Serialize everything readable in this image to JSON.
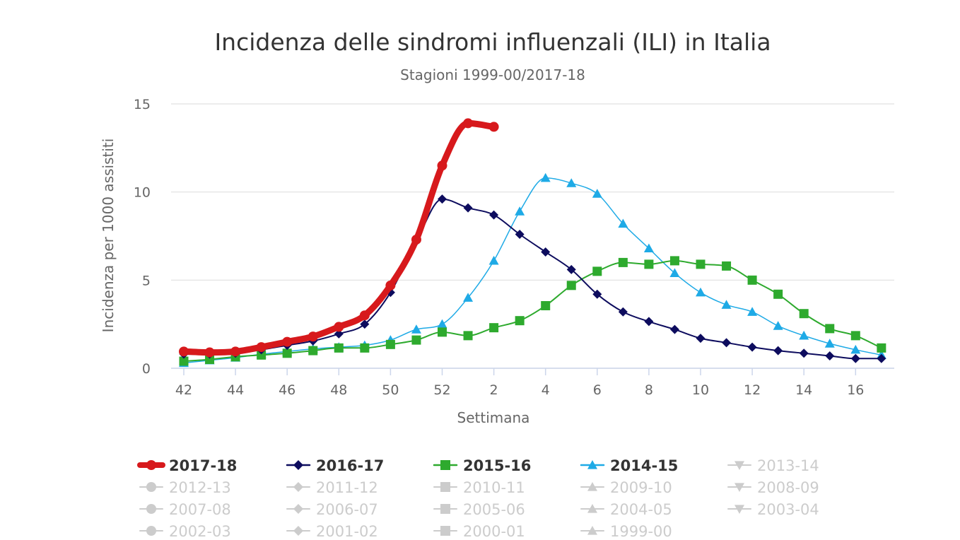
{
  "chart_data": {
    "type": "line",
    "title": "Incidenza delle sindromi influenzali (ILI) in Italia",
    "subtitle": "Stagioni 1999-00/2017-18",
    "xlabel": "Settimana",
    "ylabel": "Incidenza per 1000 assistiti",
    "ylim": [
      0,
      15
    ],
    "yticks": [
      0,
      5,
      10,
      15
    ],
    "grid": true,
    "legend_position": "bottom",
    "categories": [
      "42",
      "43",
      "44",
      "45",
      "46",
      "47",
      "48",
      "49",
      "50",
      "51",
      "52",
      "1",
      "2",
      "3",
      "4",
      "5",
      "6",
      "7",
      "8",
      "9",
      "10",
      "11",
      "12",
      "13",
      "14",
      "15",
      "16",
      "17"
    ],
    "xtick_labels": [
      "42",
      "44",
      "46",
      "48",
      "50",
      "52",
      "2",
      "4",
      "6",
      "8",
      "10",
      "12",
      "14",
      "16"
    ],
    "series": [
      {
        "name": "2017-18",
        "color": "#d7191c",
        "marker": "circle",
        "visible": true,
        "values": [
          0.95,
          0.9,
          0.95,
          1.2,
          1.5,
          1.8,
          2.35,
          3.0,
          4.7,
          7.3,
          11.5,
          13.9,
          13.7,
          null,
          null,
          null,
          null,
          null,
          null,
          null,
          null,
          null,
          null,
          null,
          null,
          null,
          null,
          null
        ]
      },
      {
        "name": "2016-17",
        "color": "#0d0c5e",
        "marker": "diamond",
        "visible": true,
        "values": [
          0.8,
          0.8,
          0.85,
          1.05,
          1.3,
          1.55,
          1.95,
          2.5,
          4.3,
          7.2,
          9.6,
          9.1,
          8.7,
          7.6,
          6.6,
          5.6,
          4.2,
          3.2,
          2.65,
          2.2,
          1.7,
          1.45,
          1.2,
          1.0,
          0.85,
          0.7,
          0.55,
          0.55
        ]
      },
      {
        "name": "2015-16",
        "color": "#2eaa2e",
        "marker": "square",
        "visible": true,
        "values": [
          0.4,
          0.5,
          0.65,
          0.75,
          0.85,
          1.0,
          1.15,
          1.15,
          1.35,
          1.6,
          2.05,
          1.85,
          2.3,
          2.7,
          3.55,
          4.7,
          5.5,
          6.0,
          5.9,
          6.1,
          5.9,
          5.8,
          5.0,
          4.2,
          3.1,
          2.25,
          1.85,
          1.15
        ]
      },
      {
        "name": "2014-15",
        "color": "#1eaae6",
        "marker": "triangle",
        "visible": true,
        "values": [
          0.3,
          0.45,
          0.6,
          0.8,
          0.95,
          1.1,
          1.2,
          1.3,
          1.6,
          2.2,
          2.5,
          4.0,
          6.1,
          8.9,
          10.8,
          10.5,
          9.9,
          8.2,
          6.8,
          5.4,
          4.3,
          3.6,
          3.2,
          2.4,
          1.85,
          1.4,
          1.05,
          0.75
        ]
      }
    ],
    "legend": [
      {
        "name": "2017-18",
        "marker": "circle",
        "active": true,
        "color": "#d7191c"
      },
      {
        "name": "2016-17",
        "marker": "diamond",
        "active": true,
        "color": "#0d0c5e"
      },
      {
        "name": "2015-16",
        "marker": "square",
        "active": true,
        "color": "#2eaa2e"
      },
      {
        "name": "2014-15",
        "marker": "triangle",
        "active": true,
        "color": "#1eaae6"
      },
      {
        "name": "2013-14",
        "marker": "triangle-down",
        "active": false
      },
      {
        "name": "2012-13",
        "marker": "circle",
        "active": false
      },
      {
        "name": "2011-12",
        "marker": "diamond",
        "active": false
      },
      {
        "name": "2010-11",
        "marker": "square",
        "active": false
      },
      {
        "name": "2009-10",
        "marker": "triangle",
        "active": false
      },
      {
        "name": "2008-09",
        "marker": "triangle-down",
        "active": false
      },
      {
        "name": "2007-08",
        "marker": "circle",
        "active": false
      },
      {
        "name": "2006-07",
        "marker": "diamond",
        "active": false
      },
      {
        "name": "2005-06",
        "marker": "square",
        "active": false
      },
      {
        "name": "2004-05",
        "marker": "triangle",
        "active": false
      },
      {
        "name": "2003-04",
        "marker": "triangle-down",
        "active": false
      },
      {
        "name": "2002-03",
        "marker": "circle",
        "active": false
      },
      {
        "name": "2001-02",
        "marker": "diamond",
        "active": false
      },
      {
        "name": "2000-01",
        "marker": "square",
        "active": false
      },
      {
        "name": "1999-00",
        "marker": "triangle",
        "active": false
      }
    ]
  }
}
